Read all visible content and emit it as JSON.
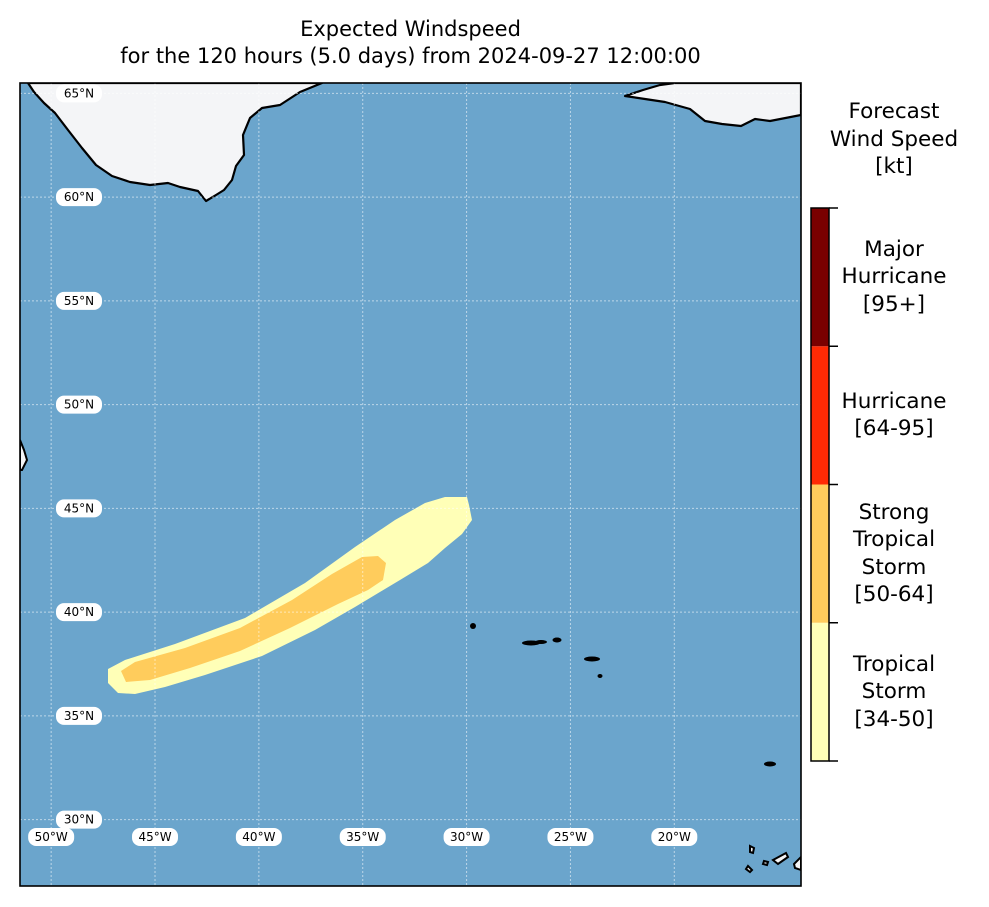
{
  "title": {
    "line1": "Expected Windspeed",
    "line2": "for the 120 hours (5.0 days) from 2024-09-27 12:00:00"
  },
  "map": {
    "extent": {
      "lon_min": -51.5,
      "lon_max": -13.9,
      "lat_min": 26.8,
      "lat_max": 65.5
    },
    "ocean_color": "#6ba5cc",
    "land_color": "#f4f5f7",
    "coast_color": "#000000",
    "lat_labels": [
      "65°N",
      "60°N",
      "55°N",
      "50°N",
      "45°N",
      "40°N",
      "35°N",
      "30°N"
    ],
    "lat_values": [
      65,
      60,
      55,
      50,
      45,
      40,
      35,
      30
    ],
    "lon_labels": [
      "50°W",
      "45°W",
      "40°W",
      "35°W",
      "30°W",
      "25°W",
      "20°W"
    ],
    "lon_values": [
      -50,
      -45,
      -40,
      -35,
      -30,
      -25,
      -20
    ]
  },
  "colorbar": {
    "title_lines": [
      "Forecast",
      "Wind Speed",
      "[kt]"
    ],
    "categories": [
      {
        "lines": [
          "Tropical",
          "Storm",
          "[34-50]"
        ],
        "color": "#ffffb7"
      },
      {
        "lines": [
          "Strong",
          "Tropical",
          "Storm",
          "[50-64]"
        ],
        "color": "#ffcc5c"
      },
      {
        "lines": [
          "Hurricane",
          "[64-95]"
        ],
        "color": "#ff2a05"
      },
      {
        "lines": [
          "Major",
          "Hurricane",
          "[95+]"
        ],
        "color": "#7a0000"
      }
    ]
  }
}
